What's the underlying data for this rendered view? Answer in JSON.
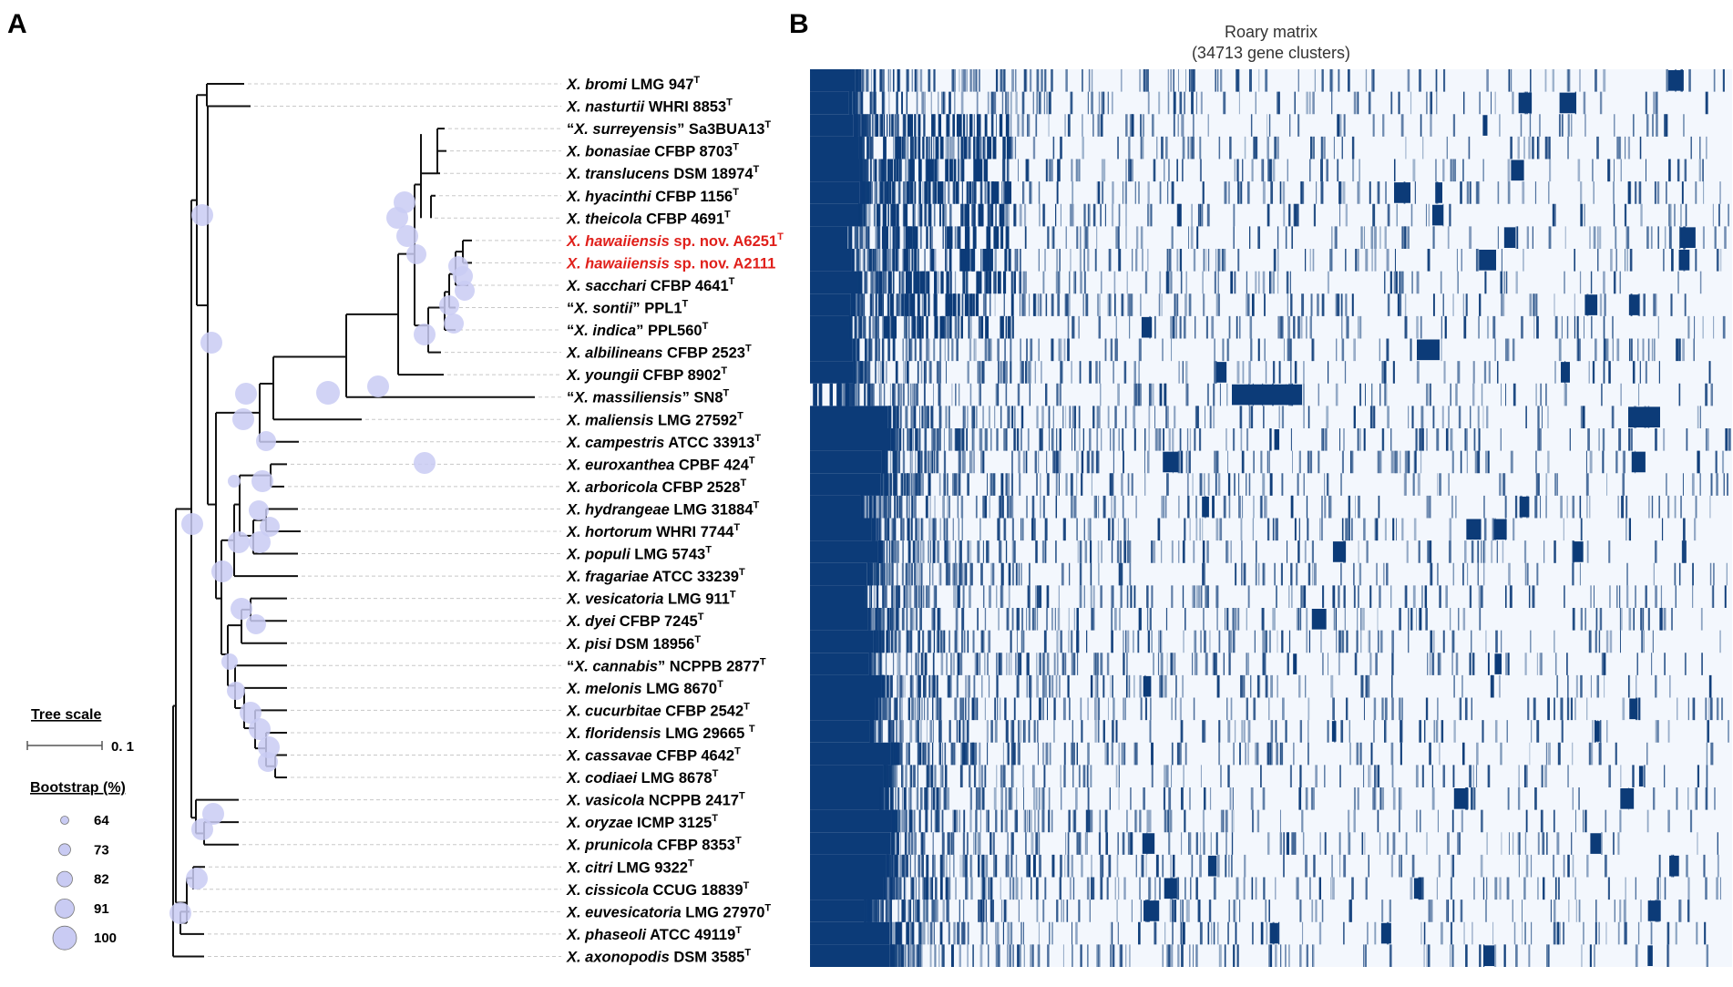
{
  "panels": {
    "a": "A",
    "b": "B"
  },
  "legend": {
    "tree_scale_label": "Tree scale",
    "tree_scale_value": "0. 1",
    "bootstrap_label": "Bootstrap (%)",
    "bootstrap_values": [
      "64",
      "73",
      "82",
      "91",
      "100"
    ]
  },
  "matrix": {
    "title": "Roary matrix",
    "subtitle": "(34713 gene clusters)",
    "fill_color": "#0c3b78",
    "background_color": "#f3f7fd"
  },
  "highlight_color": "#e0201b",
  "taxa": [
    {
      "italic": "X. bromi",
      "rest": " LMG 947",
      "sup": "T"
    },
    {
      "italic": "X. nasturtii",
      "rest": " WHRI 8853",
      "sup": "T"
    },
    {
      "pre": "“",
      "italic": "X. surreyensis",
      "rest": "” Sa3BUA13",
      "sup": "T"
    },
    {
      "italic": "X. bonasiae",
      "rest": " CFBP 8703",
      "sup": "T"
    },
    {
      "italic": "X. translucens",
      "rest": " DSM 18974",
      "sup": "T"
    },
    {
      "italic": "X. hyacinthi",
      "rest": " CFBP 1156",
      "sup": "T"
    },
    {
      "italic": "X. theicola",
      "rest": " CFBP 4691",
      "sup": "T"
    },
    {
      "italic": "X. hawaiiensis",
      "rest": " sp. nov. A6251",
      "sup": "T",
      "highlight": true
    },
    {
      "italic": "X. hawaiiensis",
      "rest": " sp. nov. A2111",
      "highlight": true
    },
    {
      "italic": "X. sacchari",
      "rest": " CFBP 4641",
      "sup": "T"
    },
    {
      "pre": "“",
      "italic": "X. sontii",
      "rest": "” PPL1",
      "sup": "T"
    },
    {
      "pre": "“",
      "italic": "X. indica",
      "rest": "” PPL560",
      "sup": "T"
    },
    {
      "italic": "X. albilineans",
      "rest": " CFBP 2523",
      "sup": "T"
    },
    {
      "italic": "X. youngii",
      "rest": " CFBP 8902",
      "sup": "T"
    },
    {
      "pre": "“",
      "italic": "X. massiliensis",
      "rest": "” SN8",
      "sup": "T"
    },
    {
      "italic": "X. maliensis",
      "rest": " LMG 27592",
      "sup": "T"
    },
    {
      "italic": "X. campestris",
      "rest": " ATCC 33913",
      "sup": "T"
    },
    {
      "italic": "X. euroxanthea",
      "rest": " CPBF 424",
      "sup": "T"
    },
    {
      "italic": "X. arboricola",
      "rest": " CFBP 2528",
      "sup": "T"
    },
    {
      "italic": "X. hydrangeae",
      "rest": " LMG 31884",
      "sup": "T"
    },
    {
      "italic": "X. hortorum",
      "rest": " WHRI 7744",
      "sup": "T"
    },
    {
      "italic": "X. populi",
      "rest": " LMG 5743",
      "sup": "T"
    },
    {
      "italic": "X. fragariae",
      "rest": " ATCC 33239",
      "sup": "T"
    },
    {
      "italic": "X. vesicatoria",
      "rest": " LMG 911",
      "sup": "T"
    },
    {
      "italic": "X. dyei",
      "rest": " CFBP 7245",
      "sup": "T"
    },
    {
      "italic": "X. pisi",
      "rest": " DSM 18956",
      "sup": "T"
    },
    {
      "pre": "“",
      "italic": "X. cannabis",
      "rest": "” NCPPB 2877",
      "sup": "T"
    },
    {
      "italic": "X. melonis",
      "rest": " LMG 8670",
      "sup": "T"
    },
    {
      "italic": "X. cucurbitae",
      "rest": " CFBP 2542",
      "sup": "T"
    },
    {
      "italic": "X. floridensis",
      "rest": " LMG 29665 ",
      "sup": "T"
    },
    {
      "italic": "X. cassavae",
      "rest": " CFBP 4642",
      "sup": "T"
    },
    {
      "italic": "X. codiaei",
      "rest": " LMG 8678",
      "sup": "T"
    },
    {
      "italic": "X. vasicola",
      "rest": " NCPPB 2417",
      "sup": "T"
    },
    {
      "italic": "X. oryzae",
      "rest": " ICMP 3125",
      "sup": "T"
    },
    {
      "italic": "X. prunicola",
      "rest": " CFBP 8353",
      "sup": "T"
    },
    {
      "italic": "X. citri",
      "rest": " LMG 9322",
      "sup": "T"
    },
    {
      "italic": "X. cissicola",
      "rest": " CCUG 18839",
      "sup": "T"
    },
    {
      "italic": "X. euvesicatoria",
      "rest": " LMG 27970",
      "sup": "T"
    },
    {
      "italic": "X. phaseoli",
      "rest": " ATCC 49119",
      "sup": "T"
    },
    {
      "italic": "X. axonopodis",
      "rest": " DSM 3585",
      "sup": "T"
    }
  ]
}
